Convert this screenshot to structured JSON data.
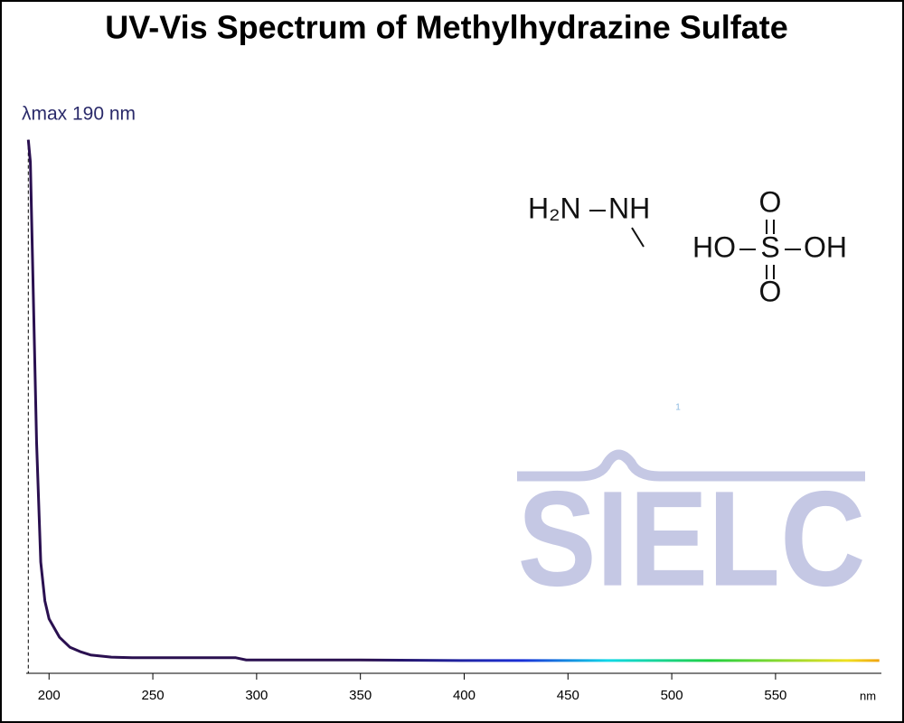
{
  "chart_data": {
    "type": "line",
    "title": "UV-Vis Spectrum of Methylhydrazine Sulfate",
    "annotation": "λmax  190 nm",
    "x_unit": "nm",
    "watermark": "SIELC",
    "footnote_mark": "1",
    "structure": {
      "hydrazine": [
        "H₂N",
        "NH"
      ],
      "sulfate": [
        "HO",
        "S",
        "OH",
        "O",
        "O"
      ]
    },
    "x": [
      190,
      191,
      194,
      196,
      198,
      200,
      205,
      210,
      215,
      220,
      230,
      240,
      250,
      290,
      295,
      350,
      400,
      450,
      500,
      550,
      600
    ],
    "series": [
      {
        "color": "#2a1050",
        "values": [
          0.96,
          0.92,
          0.415,
          0.2,
          0.13,
          0.098,
          0.065,
          0.047,
          0.039,
          0.033,
          0.029,
          0.028,
          0.028,
          0.028,
          0.024,
          0.024,
          0.023,
          0.023,
          0.023,
          0.023,
          0.023
        ]
      }
    ],
    "xlim": [
      189,
      601
    ],
    "ylim": [
      0,
      1
    ],
    "xticks": [
      200,
      250,
      300,
      350,
      400,
      450,
      500,
      550
    ]
  }
}
